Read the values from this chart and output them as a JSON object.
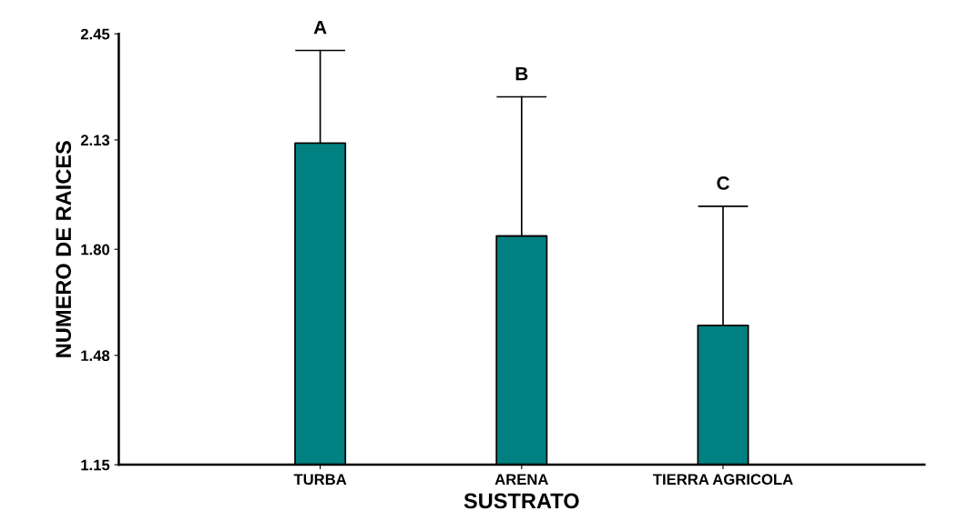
{
  "chart_data": {
    "type": "bar",
    "xlabel": "SUSTRATO",
    "ylabel": "NUMERO DE RAICES",
    "categories": [
      "TURBA",
      "ARENA",
      "TIERRA AGRICOLA"
    ],
    "values": [
      2.12,
      1.84,
      1.57
    ],
    "errors": [
      [
        2.12,
        2.4
      ],
      [
        1.84,
        2.26
      ],
      [
        1.57,
        1.93
      ]
    ],
    "color": "#008080",
    "ylim": [
      1.15,
      2.45
    ],
    "yticks": [
      1.15,
      1.48,
      {
        "value": 1.8,
        "label": "1.80"
      },
      2.13,
      2.45
    ],
    "annotations": [
      {
        "text": "A",
        "x": "TURBA",
        "y": 2.4
      },
      {
        "text": "B",
        "x": "ARENA",
        "y": 2.26
      },
      {
        "text": "C",
        "x": "TIERRA AGRICOLA",
        "y": 1.93
      }
    ],
    "grid": false,
    "legend": false
  }
}
